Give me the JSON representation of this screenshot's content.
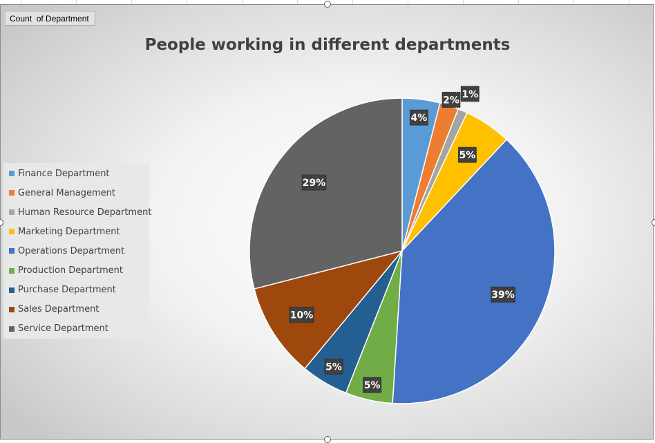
{
  "field_button": {
    "label": "Count  of Department"
  },
  "chart_data": {
    "type": "pie",
    "title": "People working in different departments",
    "legend_placement": "left",
    "categories": [
      "Finance Department",
      "General Management",
      "Human Resource Department",
      "Marketing Department",
      "Operations Department",
      "Production Department",
      "Purchase Department",
      "Sales Department",
      "Service Department"
    ],
    "values": [
      4,
      2,
      1,
      5,
      39,
      5,
      5,
      10,
      29
    ],
    "data_labels": [
      "4%",
      "2%",
      "1%",
      "5%",
      "39%",
      "5%",
      "5%",
      "10%",
      "29%"
    ],
    "colors": [
      "#5B9BD5",
      "#ED7D31",
      "#A5A5A5",
      "#FFC000",
      "#4472C4",
      "#70AD47",
      "#255E91",
      "#9E480E",
      "#636363"
    ]
  }
}
